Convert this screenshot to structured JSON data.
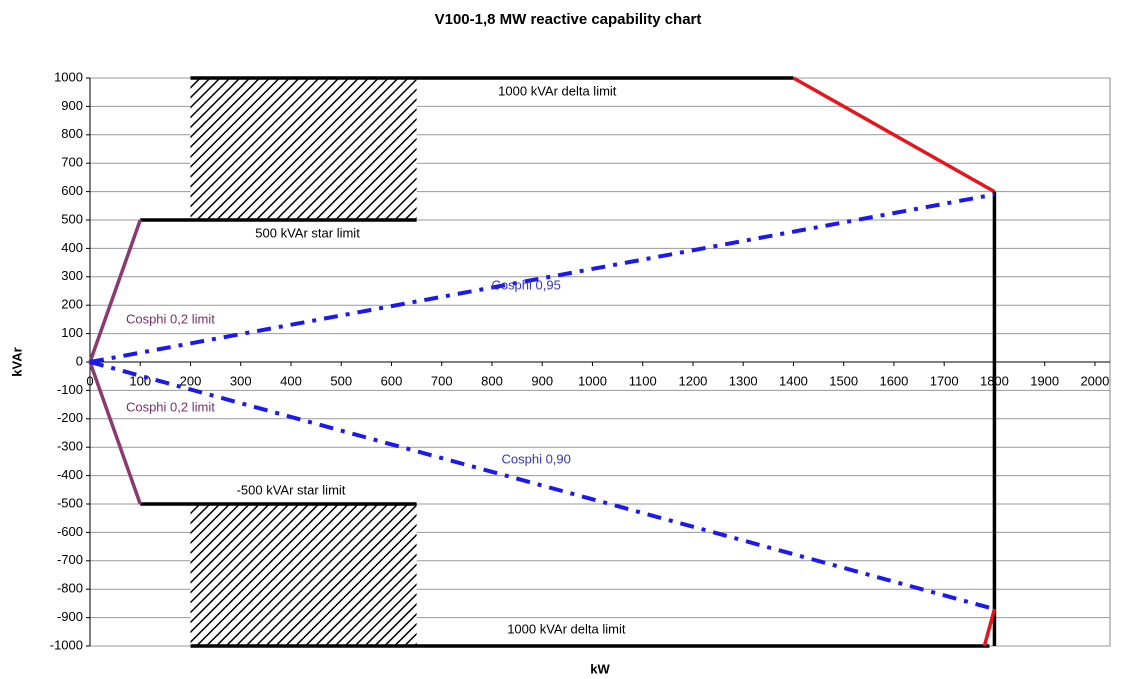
{
  "chart_data": {
    "type": "line",
    "title": "V100-1,8 MW reactive capability chart",
    "xlabel": "kW",
    "ylabel": "kVAr",
    "xlim": [
      0,
      2030
    ],
    "ylim": [
      -1000,
      1000
    ],
    "xticks": [
      0,
      100,
      200,
      300,
      400,
      500,
      600,
      700,
      800,
      900,
      1000,
      1100,
      1200,
      1300,
      1400,
      1500,
      1600,
      1700,
      1800,
      1900,
      2000
    ],
    "yticks": [
      -1000,
      -900,
      -800,
      -700,
      -600,
      -500,
      -400,
      -300,
      -200,
      -100,
      0,
      100,
      200,
      300,
      400,
      500,
      600,
      700,
      800,
      900,
      1000
    ],
    "grid": true,
    "regions": [
      {
        "x": [
          200,
          650
        ],
        "y": [
          500,
          1000
        ]
      },
      {
        "x": [
          200,
          650
        ],
        "y": [
          -1000,
          -500
        ]
      }
    ],
    "series": [
      {
        "color": "#000000",
        "dash": false,
        "x": [
          100,
          650
        ],
        "y": [
          500,
          500
        ]
      },
      {
        "color": "#000000",
        "dash": false,
        "x": [
          200,
          1400
        ],
        "y": [
          1000,
          1000
        ]
      },
      {
        "color": "#e8141c",
        "dash": false,
        "x": [
          1400,
          1800
        ],
        "y": [
          1000,
          600
        ]
      },
      {
        "color": "#000000",
        "dash": false,
        "x": [
          1800,
          1800
        ],
        "y": [
          600,
          -1000
        ]
      },
      {
        "color": "#000000",
        "dash": false,
        "x": [
          200,
          1790
        ],
        "y": [
          -1000,
          -1000
        ]
      },
      {
        "color": "#e8141c",
        "dash": false,
        "x": [
          1780,
          1800
        ],
        "y": [
          -1000,
          -870
        ]
      },
      {
        "color": "#000000",
        "dash": false,
        "x": [
          100,
          650
        ],
        "y": [
          -500,
          -500
        ]
      },
      {
        "color": "#8a3a6e",
        "dash": false,
        "x": [
          100,
          0,
          100
        ],
        "y": [
          500,
          0,
          -500
        ]
      },
      {
        "color": "#1a1aee",
        "dash": true,
        "x": [
          0,
          1800
        ],
        "y": [
          0,
          590
        ]
      },
      {
        "color": "#1a1aee",
        "dash": true,
        "x": [
          0,
          1800
        ],
        "y": [
          0,
          -870
        ]
      }
    ],
    "annotations": [
      {
        "text": "1000 kVAr delta limit",
        "x": 930,
        "y": 950,
        "color": "#000000"
      },
      {
        "text": "500 kVAr star limit",
        "x": 433,
        "y": 450,
        "color": "#000000"
      },
      {
        "text": "Cosphi 0,95",
        "x": 868,
        "y": 268,
        "color": "#3535c8"
      },
      {
        "text": "Cosphi 0,2 limit",
        "x": 160,
        "y": 148,
        "color": "#7a3068"
      },
      {
        "text": "Cosphi 0,2 limit",
        "x": 160,
        "y": -162,
        "color": "#7a3068"
      },
      {
        "text": "Cosphi 0,90",
        "x": 888,
        "y": -345,
        "color": "#3535c8"
      },
      {
        "text": "-500 kVAr star limit",
        "x": 400,
        "y": -455,
        "color": "#000000"
      },
      {
        "text": "1000 kVAr delta limit",
        "x": 948,
        "y": -944,
        "color": "#000000"
      }
    ]
  }
}
